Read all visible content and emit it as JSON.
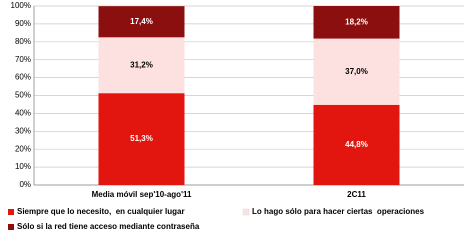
{
  "chart_data": {
    "type": "stacked_bar",
    "categories": [
      "Media móvil sep'10-ago'11",
      "2C11"
    ],
    "series": [
      {
        "name": "Siempre que lo necesito,  en cualquier lugar",
        "color": "#e3160f",
        "values": [
          51.3,
          44.8
        ],
        "value_labels": [
          "51,3%",
          "44,8%"
        ]
      },
      {
        "name": "Lo hago sólo para hacer ciertas  operaciones",
        "color": "#fde0e0",
        "values": [
          31.2,
          37.0
        ],
        "value_labels": [
          "31,2%",
          "37,0%"
        ]
      },
      {
        "name": "Sólo si la red tiene acceso mediante contraseña",
        "color": "#8c0f0f",
        "values": [
          17.4,
          18.2
        ],
        "value_labels": [
          "17,4%",
          "18,2%"
        ]
      }
    ],
    "ylim": [
      0,
      100
    ],
    "yticks": [
      {
        "value": 0,
        "label": "0%"
      },
      {
        "value": 10,
        "label": "10%"
      },
      {
        "value": 20,
        "label": "20%"
      },
      {
        "value": 30,
        "label": "30%"
      },
      {
        "value": 40,
        "label": "40%"
      },
      {
        "value": 50,
        "label": "50%"
      },
      {
        "value": 60,
        "label": "60%"
      },
      {
        "value": 70,
        "label": "70%"
      },
      {
        "value": 80,
        "label": "80%"
      },
      {
        "value": 90,
        "label": "90%"
      },
      {
        "value": 100,
        "label": "100%"
      }
    ],
    "grid": true
  }
}
